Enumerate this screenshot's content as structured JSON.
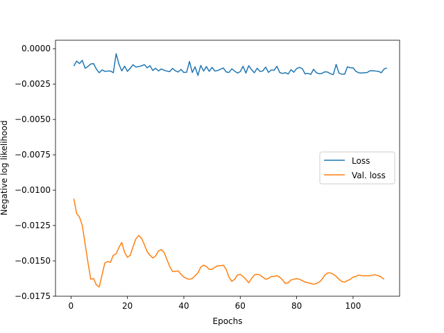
{
  "chart_data": {
    "type": "line",
    "title": "",
    "xlabel": "Epochs",
    "ylabel": "Negative log likelihood",
    "xlim": [
      -5.5,
      116.5
    ],
    "ylim": [
      -0.0175,
      0.0006
    ],
    "xticks": [
      0,
      20,
      40,
      60,
      80,
      100
    ],
    "yticks": [
      0.0,
      -0.0025,
      -0.005,
      -0.0075,
      -0.01,
      -0.0125,
      -0.015,
      -0.0175
    ],
    "ytick_labels": [
      "0.0000",
      "−0.0025",
      "−0.0050",
      "−0.0075",
      "−0.0100",
      "−0.0125",
      "−0.0150",
      "−0.0175"
    ],
    "xtick_labels": [
      "0",
      "20",
      "40",
      "60",
      "80",
      "100"
    ],
    "grid": false,
    "legend_position": "center-right",
    "x_start": 1,
    "series": [
      {
        "name": "Loss",
        "color": "#1f77b4",
        "values": [
          -0.00122,
          -0.00087,
          -0.00105,
          -0.00082,
          -0.00138,
          -0.00125,
          -0.00108,
          -0.00105,
          -0.00145,
          -0.0017,
          -0.0015,
          -0.0016,
          -0.00158,
          -0.00157,
          -0.0017,
          -0.00035,
          -0.0011,
          -0.00157,
          -0.00123,
          -0.0016,
          -0.00138,
          -0.00113,
          -0.0013,
          -0.00126,
          -0.00121,
          -0.00112,
          -0.00135,
          -0.0012,
          -0.00154,
          -0.00138,
          -0.00157,
          -0.00143,
          -0.00152,
          -0.00158,
          -0.00162,
          -0.00139,
          -0.00156,
          -0.00165,
          -0.00146,
          -0.00168,
          -0.00166,
          -0.0009,
          -0.00168,
          -0.00128,
          -0.00189,
          -0.00118,
          -0.00158,
          -0.00126,
          -0.0016,
          -0.00132,
          -0.00158,
          -0.00154,
          -0.00145,
          -0.00136,
          -0.00164,
          -0.00168,
          -0.00142,
          -0.00158,
          -0.00172,
          -0.00162,
          -0.00124,
          -0.00172,
          -0.0012,
          -0.00148,
          -0.0017,
          -0.00138,
          -0.00161,
          -0.00157,
          -0.0013,
          -0.00167,
          -0.0015,
          -0.00152,
          -0.00124,
          -0.00168,
          -0.00175,
          -0.00169,
          -0.00179,
          -0.00148,
          -0.00166,
          -0.0014,
          -0.00132,
          -0.00141,
          -0.00178,
          -0.00174,
          -0.00182,
          -0.00145,
          -0.0017,
          -0.00177,
          -0.00174,
          -0.00163,
          -0.00165,
          -0.00177,
          -0.00183,
          -0.00111,
          -0.00172,
          -0.0018,
          -0.0018,
          -0.00128,
          -0.00135,
          -0.00135,
          -0.0016,
          -0.0017,
          -0.00172,
          -0.0017,
          -0.00168,
          -0.00156,
          -0.00155,
          -0.00158,
          -0.0016,
          -0.0017,
          -0.00144,
          -0.00135
        ]
      },
      {
        "name": "Val. loss",
        "color": "#ff7f0e",
        "values": [
          -0.0106,
          -0.01165,
          -0.0119,
          -0.0125,
          -0.0138,
          -0.0151,
          -0.0163,
          -0.01625,
          -0.0167,
          -0.01685,
          -0.016,
          -0.01515,
          -0.01505,
          -0.0151,
          -0.0146,
          -0.0145,
          -0.01405,
          -0.0137,
          -0.0144,
          -0.01475,
          -0.0146,
          -0.014,
          -0.01345,
          -0.0132,
          -0.0134,
          -0.01385,
          -0.01435,
          -0.0146,
          -0.0148,
          -0.01465,
          -0.0143,
          -0.0142,
          -0.0144,
          -0.0149,
          -0.0154,
          -0.01575,
          -0.01575,
          -0.0157,
          -0.01595,
          -0.01615,
          -0.01625,
          -0.0163,
          -0.01625,
          -0.01605,
          -0.01585,
          -0.01545,
          -0.0153,
          -0.0154,
          -0.0156,
          -0.0156,
          -0.01545,
          -0.01535,
          -0.01535,
          -0.0153,
          -0.0156,
          -0.01615,
          -0.01645,
          -0.0163,
          -0.016,
          -0.01595,
          -0.0161,
          -0.0163,
          -0.01655,
          -0.01625,
          -0.016,
          -0.01595,
          -0.016,
          -0.01615,
          -0.0163,
          -0.01625,
          -0.0161,
          -0.0161,
          -0.01605,
          -0.01615,
          -0.01635,
          -0.0166,
          -0.01655,
          -0.01635,
          -0.0163,
          -0.01625,
          -0.0163,
          -0.0164,
          -0.0165,
          -0.01655,
          -0.0166,
          -0.01665,
          -0.0166,
          -0.0165,
          -0.0163,
          -0.016,
          -0.01585,
          -0.01585,
          -0.01595,
          -0.0161,
          -0.0163,
          -0.01645,
          -0.0165,
          -0.0164,
          -0.0163,
          -0.01615,
          -0.0161,
          -0.016,
          -0.01605,
          -0.01605,
          -0.01605,
          -0.01605,
          -0.016,
          -0.016,
          -0.01605,
          -0.01615,
          -0.0163
        ]
      }
    ]
  }
}
